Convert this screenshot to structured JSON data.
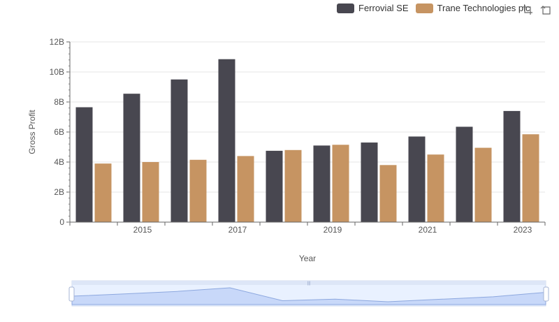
{
  "legend": {
    "items": [
      {
        "label": "Ferrovial SE",
        "color": "#484750"
      },
      {
        "label": "Trane Technologies plc",
        "color": "#c69462"
      }
    ]
  },
  "toolbar": {
    "icons": [
      "zoom-select-icon",
      "zoom-reset-icon"
    ]
  },
  "chart_data": {
    "type": "bar",
    "title": "",
    "xlabel": "Year",
    "ylabel": "Gross Profit",
    "x_tick_labels": [
      "2015",
      "2017",
      "2019",
      "2021",
      "2023"
    ],
    "y_tick_labels": [
      "0",
      "2B",
      "4B",
      "6B",
      "8B",
      "10B",
      "12B"
    ],
    "ylim": [
      0,
      12000000000
    ],
    "categories": [
      "2014",
      "2015",
      "2016",
      "2017",
      "2018",
      "2019",
      "2020",
      "2021",
      "2022",
      "2023"
    ],
    "series": [
      {
        "name": "Ferrovial SE",
        "color": "#484750",
        "values": [
          7650000000,
          8550000000,
          9500000000,
          10850000000,
          4750000000,
          5100000000,
          5300000000,
          5700000000,
          6350000000,
          7400000000
        ]
      },
      {
        "name": "Trane Technologies plc",
        "color": "#c69462",
        "values": [
          3900000000,
          4000000000,
          4150000000,
          4400000000,
          4800000000,
          5150000000,
          3800000000,
          4500000000,
          4950000000,
          5850000000
        ]
      }
    ],
    "grid": true,
    "legend_position": "top-right",
    "data_zoom": true
  }
}
